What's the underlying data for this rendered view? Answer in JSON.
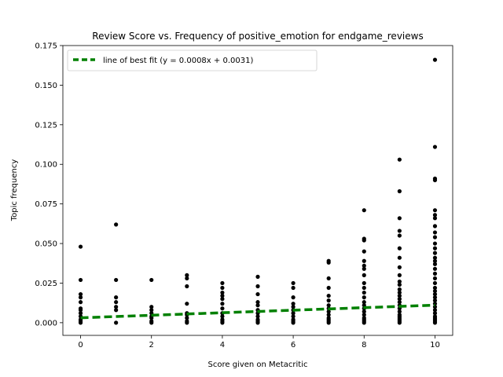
{
  "chart_data": {
    "type": "scatter",
    "title": "Review Score vs. Frequency of positive_emotion for endgame_reviews",
    "xlabel": "Score given on Metacritic",
    "ylabel": "Topic frequency",
    "xlim": [
      -0.5,
      10.5
    ],
    "ylim": [
      -0.008,
      0.175
    ],
    "xticks": [
      0,
      2,
      4,
      6,
      8,
      10
    ],
    "yticks": [
      0.0,
      0.025,
      0.05,
      0.075,
      0.1,
      0.125,
      0.15,
      0.175
    ],
    "ytick_labels": [
      "0.000",
      "0.025",
      "0.050",
      "0.075",
      "0.100",
      "0.125",
      "0.150",
      "0.175"
    ],
    "grid": false,
    "legend_position": "top-left",
    "legend_label": "line of best fit (y = 0.0008x + 0.0031)",
    "points_color": "#000000",
    "fit_color": "#008000",
    "fit": {
      "slope": 0.0008,
      "intercept": 0.0031,
      "x_range": [
        0,
        10
      ]
    },
    "points": [
      [
        0,
        0.048
      ],
      [
        0,
        0.027
      ],
      [
        0,
        0.018
      ],
      [
        0,
        0.016
      ],
      [
        0,
        0.013
      ],
      [
        0,
        0.009
      ],
      [
        0,
        0.008
      ],
      [
        0,
        0.006
      ],
      [
        0,
        0.004
      ],
      [
        0,
        0.002
      ],
      [
        0,
        0.001
      ],
      [
        0,
        0.0
      ],
      [
        1,
        0.062
      ],
      [
        1,
        0.027
      ],
      [
        1,
        0.016
      ],
      [
        1,
        0.013
      ],
      [
        1,
        0.01
      ],
      [
        1,
        0.008
      ],
      [
        1,
        0.0
      ],
      [
        2,
        0.027
      ],
      [
        2,
        0.01
      ],
      [
        2,
        0.008
      ],
      [
        2,
        0.006
      ],
      [
        2,
        0.004
      ],
      [
        2,
        0.003
      ],
      [
        2,
        0.001
      ],
      [
        2,
        0.0
      ],
      [
        3,
        0.03
      ],
      [
        3,
        0.028
      ],
      [
        3,
        0.023
      ],
      [
        3,
        0.012
      ],
      [
        3,
        0.006
      ],
      [
        3,
        0.005
      ],
      [
        3,
        0.003
      ],
      [
        3,
        0.001
      ],
      [
        3,
        0.0
      ],
      [
        4,
        0.025
      ],
      [
        4,
        0.022
      ],
      [
        4,
        0.019
      ],
      [
        4,
        0.017
      ],
      [
        4,
        0.015
      ],
      [
        4,
        0.012
      ],
      [
        4,
        0.009
      ],
      [
        4,
        0.006
      ],
      [
        4,
        0.004
      ],
      [
        4,
        0.002
      ],
      [
        4,
        0.001
      ],
      [
        4,
        0.0
      ],
      [
        5,
        0.029
      ],
      [
        5,
        0.023
      ],
      [
        5,
        0.018
      ],
      [
        5,
        0.013
      ],
      [
        5,
        0.011
      ],
      [
        5,
        0.008
      ],
      [
        5,
        0.006
      ],
      [
        5,
        0.004
      ],
      [
        5,
        0.002
      ],
      [
        5,
        0.001
      ],
      [
        5,
        0.0
      ],
      [
        6,
        0.025
      ],
      [
        6,
        0.022
      ],
      [
        6,
        0.016
      ],
      [
        6,
        0.012
      ],
      [
        6,
        0.01
      ],
      [
        6,
        0.008
      ],
      [
        6,
        0.006
      ],
      [
        6,
        0.004
      ],
      [
        6,
        0.002
      ],
      [
        6,
        0.001
      ],
      [
        6,
        0.0
      ],
      [
        7,
        0.039
      ],
      [
        7,
        0.038
      ],
      [
        7,
        0.028
      ],
      [
        7,
        0.022
      ],
      [
        7,
        0.017
      ],
      [
        7,
        0.014
      ],
      [
        7,
        0.011
      ],
      [
        7,
        0.009
      ],
      [
        7,
        0.007
      ],
      [
        7,
        0.005
      ],
      [
        7,
        0.003
      ],
      [
        7,
        0.002
      ],
      [
        7,
        0.001
      ],
      [
        7,
        0.0
      ],
      [
        8,
        0.071
      ],
      [
        8,
        0.053
      ],
      [
        8,
        0.052
      ],
      [
        8,
        0.045
      ],
      [
        8,
        0.039
      ],
      [
        8,
        0.036
      ],
      [
        8,
        0.034
      ],
      [
        8,
        0.03
      ],
      [
        8,
        0.025
      ],
      [
        8,
        0.022
      ],
      [
        8,
        0.019
      ],
      [
        8,
        0.016
      ],
      [
        8,
        0.013
      ],
      [
        8,
        0.011
      ],
      [
        8,
        0.009
      ],
      [
        8,
        0.007
      ],
      [
        8,
        0.005
      ],
      [
        8,
        0.003
      ],
      [
        8,
        0.002
      ],
      [
        8,
        0.001
      ],
      [
        8,
        0.0
      ],
      [
        9,
        0.103
      ],
      [
        9,
        0.083
      ],
      [
        9,
        0.066
      ],
      [
        9,
        0.058
      ],
      [
        9,
        0.055
      ],
      [
        9,
        0.047
      ],
      [
        9,
        0.041
      ],
      [
        9,
        0.035
      ],
      [
        9,
        0.03
      ],
      [
        9,
        0.026
      ],
      [
        9,
        0.024
      ],
      [
        9,
        0.021
      ],
      [
        9,
        0.019
      ],
      [
        9,
        0.017
      ],
      [
        9,
        0.015
      ],
      [
        9,
        0.013
      ],
      [
        9,
        0.011
      ],
      [
        9,
        0.009
      ],
      [
        9,
        0.007
      ],
      [
        9,
        0.005
      ],
      [
        9,
        0.004
      ],
      [
        9,
        0.003
      ],
      [
        9,
        0.002
      ],
      [
        9,
        0.001
      ],
      [
        9,
        0.0
      ],
      [
        10,
        0.166
      ],
      [
        10,
        0.111
      ],
      [
        10,
        0.091
      ],
      [
        10,
        0.09
      ],
      [
        10,
        0.071
      ],
      [
        10,
        0.068
      ],
      [
        10,
        0.066
      ],
      [
        10,
        0.061
      ],
      [
        10,
        0.057
      ],
      [
        10,
        0.054
      ],
      [
        10,
        0.05
      ],
      [
        10,
        0.047
      ],
      [
        10,
        0.044
      ],
      [
        10,
        0.041
      ],
      [
        10,
        0.039
      ],
      [
        10,
        0.037
      ],
      [
        10,
        0.034
      ],
      [
        10,
        0.031
      ],
      [
        10,
        0.028
      ],
      [
        10,
        0.025
      ],
      [
        10,
        0.022
      ],
      [
        10,
        0.02
      ],
      [
        10,
        0.018
      ],
      [
        10,
        0.016
      ],
      [
        10,
        0.014
      ],
      [
        10,
        0.012
      ],
      [
        10,
        0.01
      ],
      [
        10,
        0.008
      ],
      [
        10,
        0.006
      ],
      [
        10,
        0.004
      ],
      [
        10,
        0.003
      ],
      [
        10,
        0.002
      ],
      [
        10,
        0.001
      ],
      [
        10,
        0.0
      ]
    ]
  }
}
